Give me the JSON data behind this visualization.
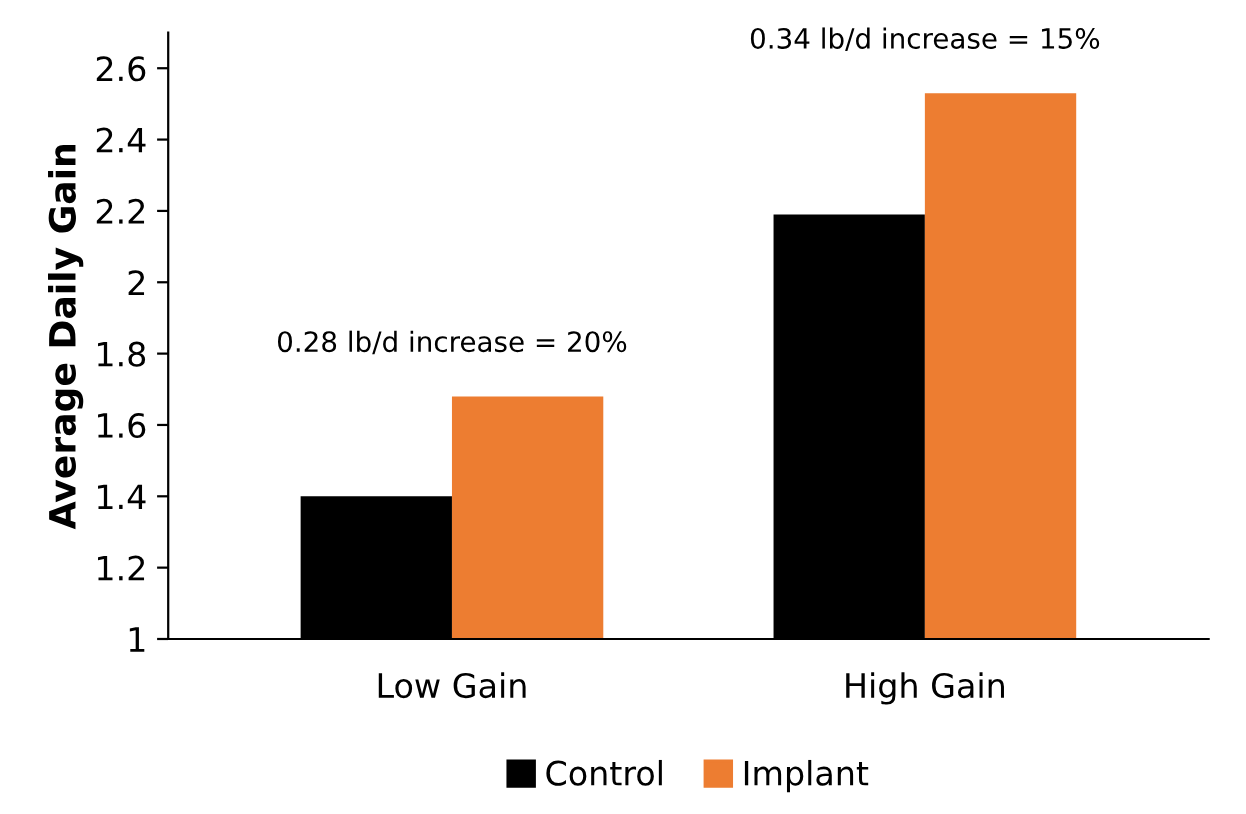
{
  "chart_data": {
    "type": "bar",
    "ylabel": "Average Daily Gain",
    "categories": [
      "Low Gain",
      "High Gain"
    ],
    "series": [
      {
        "name": "Control",
        "color": "#000000",
        "values": [
          1.4,
          2.19
        ]
      },
      {
        "name": "Implant",
        "color": "#ed7d31",
        "values": [
          1.68,
          2.53
        ]
      }
    ],
    "ylim": [
      1,
      2.7
    ],
    "yticks": [
      1,
      1.2,
      1.4,
      1.6,
      1.8,
      2,
      2.2,
      2.4,
      2.6
    ],
    "grid": false,
    "legend": "bottom",
    "annotations": [
      {
        "text": "0.28 lb/d increase = 20%",
        "x": "Low Gain",
        "y": 1.68
      },
      {
        "text": "0.34 lb/d increase = 15%",
        "x": "High Gain",
        "y": 2.53
      }
    ]
  }
}
